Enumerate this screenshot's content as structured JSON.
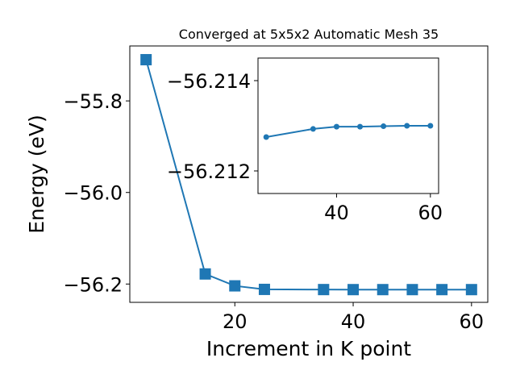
{
  "chart_data": [
    {
      "type": "line",
      "title": "Converged at 5x5x2 Automatic Mesh 35",
      "xlabel": "Increment in K point",
      "ylabel": "Energy (eV)",
      "xlim": [
        2.25,
        62.75
      ],
      "ylim": [
        -56.24,
        -55.68
      ],
      "xticks": [
        20,
        40,
        60
      ],
      "xtick_labels": [
        "20",
        "40",
        "60"
      ],
      "yticks": [
        -55.8,
        -56.0,
        -56.2
      ],
      "ytick_labels": [
        "−55.8",
        "−56.0",
        "−56.2"
      ],
      "grid": false,
      "marker": "square",
      "color": "#1f77b4",
      "series": [
        {
          "x": [
            5,
            15,
            20,
            25,
            35,
            40,
            45,
            50,
            55,
            60
          ],
          "y": [
            -55.71,
            -56.178,
            -56.204,
            -56.2117,
            -56.2121,
            -56.2122,
            -56.2122,
            -56.2122,
            -56.2122,
            -56.2122
          ]
        }
      ]
    },
    {
      "type": "line",
      "title": "",
      "xlim": [
        23.25,
        61.75
      ],
      "ylim": [
        -56.2115,
        -56.2145
      ],
      "xticks": [
        40,
        60
      ],
      "xtick_labels": [
        "40",
        "60"
      ],
      "yticks": [
        -56.214,
        -56.212
      ],
      "ytick_labels": [
        "−56.214",
        "−56.212"
      ],
      "grid": false,
      "marker": "circle",
      "color": "#1f77b4",
      "series": [
        {
          "x": [
            25,
            35,
            40,
            45,
            50,
            55,
            60
          ],
          "y": [
            -56.21275,
            -56.21293,
            -56.21298,
            -56.21298,
            -56.21299,
            -56.213,
            -56.213
          ]
        }
      ]
    }
  ]
}
